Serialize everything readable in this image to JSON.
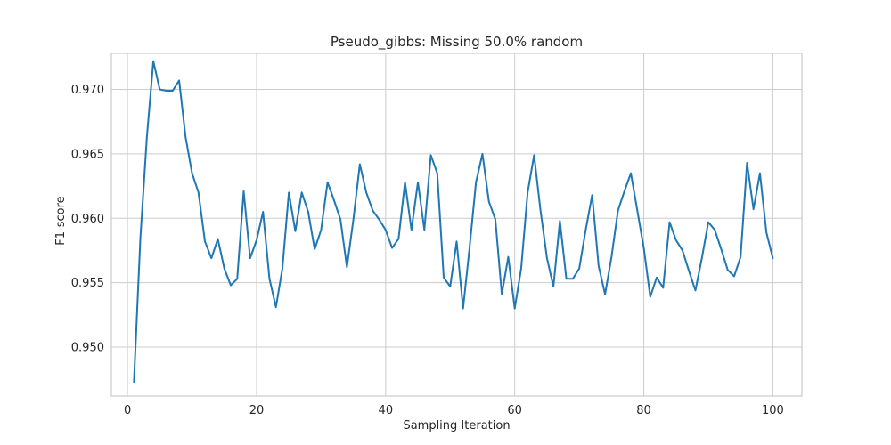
{
  "chart_data": {
    "type": "line",
    "title": "Pseudo_gibbs: Missing 50.0% random",
    "xlabel": "Sampling Iteration",
    "ylabel": "F1-score",
    "xlim": [
      -2.5,
      104.5
    ],
    "ylim": [
      0.9462,
      0.9728
    ],
    "xticks": [
      0,
      20,
      40,
      60,
      80,
      100
    ],
    "yticks": [
      0.95,
      0.955,
      0.96,
      0.965,
      0.97
    ],
    "xtick_labels": [
      "0",
      "20",
      "40",
      "60",
      "80",
      "100"
    ],
    "ytick_labels": [
      "0.950",
      "0.955",
      "0.960",
      "0.965",
      "0.970"
    ],
    "grid": true,
    "style": "seaborn-whitegrid",
    "line_color": "#1f77b4",
    "series": [
      {
        "x": [
          1,
          2,
          3,
          4,
          5,
          6,
          7,
          8,
          9,
          10,
          11,
          12,
          13,
          14,
          15,
          16,
          17,
          18,
          19,
          20,
          21,
          22,
          23,
          24,
          25,
          26,
          27,
          28,
          29,
          30,
          31,
          32,
          33,
          34,
          35,
          36,
          37,
          38,
          39,
          40,
          41,
          42,
          43,
          44,
          45,
          46,
          47,
          48,
          49,
          50,
          51,
          52,
          53,
          54,
          55,
          56,
          57,
          58,
          59,
          60,
          61,
          62,
          63,
          64,
          65,
          66,
          67,
          68,
          69,
          70,
          71,
          72,
          73,
          74,
          75,
          76,
          77,
          78,
          79,
          80,
          81,
          82,
          83,
          84,
          85,
          86,
          87,
          88,
          89,
          90,
          91,
          92,
          93,
          94,
          95,
          96,
          97,
          98,
          99,
          100
        ],
        "values": [
          0.9473,
          0.9585,
          0.9663,
          0.9722,
          0.97,
          0.9699,
          0.9699,
          0.9707,
          0.9663,
          0.9635,
          0.962,
          0.9582,
          0.9569,
          0.9584,
          0.9561,
          0.9548,
          0.9553,
          0.9621,
          0.9569,
          0.9583,
          0.9605,
          0.9553,
          0.9531,
          0.9561,
          0.962,
          0.959,
          0.962,
          0.9605,
          0.9576,
          0.9591,
          0.9628,
          0.9614,
          0.9599,
          0.9562,
          0.9599,
          0.9642,
          0.962,
          0.9606,
          0.9599,
          0.9591,
          0.9577,
          0.9584,
          0.9628,
          0.9591,
          0.9628,
          0.9591,
          0.9649,
          0.9635,
          0.9554,
          0.9547,
          0.9582,
          0.953,
          0.9577,
          0.9628,
          0.965,
          0.9613,
          0.9599,
          0.9541,
          0.957,
          0.953,
          0.9561,
          0.962,
          0.9649,
          0.9606,
          0.9569,
          0.9547,
          0.9598,
          0.9553,
          0.9553,
          0.9561,
          0.9591,
          0.9618,
          0.9563,
          0.9541,
          0.957,
          0.9606,
          0.9621,
          0.9635,
          0.9606,
          0.9577,
          0.9539,
          0.9554,
          0.9546,
          0.9597,
          0.9583,
          0.9575,
          0.9559,
          0.9544,
          0.9569,
          0.9597,
          0.9591,
          0.9576,
          0.956,
          0.9555,
          0.957,
          0.9643,
          0.9607,
          0.9635,
          0.9589,
          0.9569
        ]
      }
    ]
  }
}
